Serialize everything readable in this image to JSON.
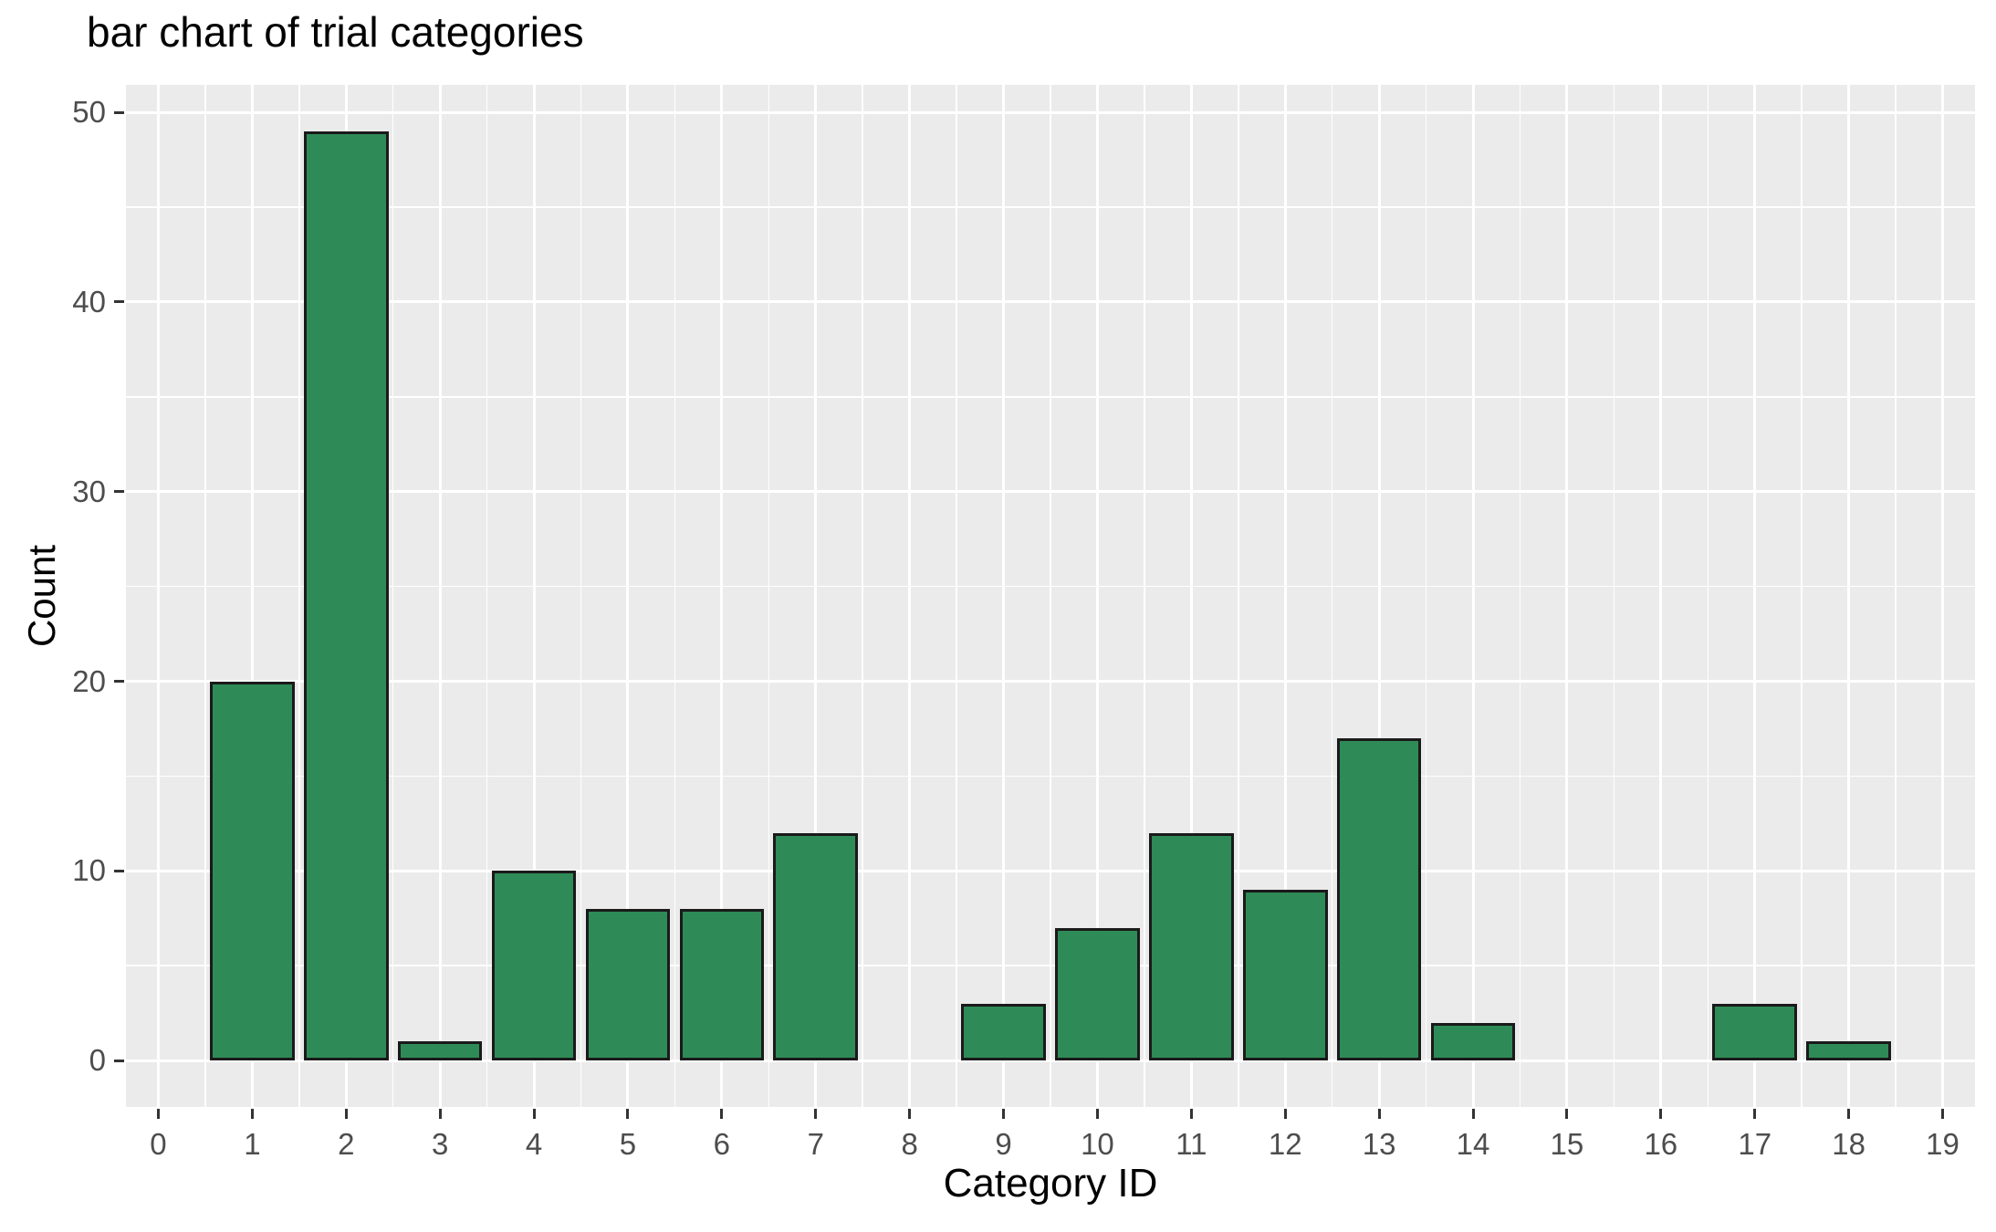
{
  "chart_data": {
    "type": "bar",
    "title": "bar chart of trial categories",
    "xlabel": "Category ID",
    "ylabel": "Count",
    "x": [
      0,
      1,
      2,
      3,
      4,
      5,
      6,
      7,
      8,
      9,
      10,
      11,
      12,
      13,
      14,
      15,
      16,
      17,
      18,
      19
    ],
    "values": [
      0,
      20,
      49,
      1,
      10,
      8,
      8,
      12,
      0,
      3,
      7,
      12,
      9,
      17,
      2,
      0,
      0,
      3,
      1,
      0
    ],
    "bar_width": 0.9,
    "xlim": [
      -0.345,
      19.345
    ],
    "ylim": [
      -2.45,
      51.45
    ],
    "x_ticks": [
      0,
      1,
      2,
      3,
      4,
      5,
      6,
      7,
      8,
      9,
      10,
      11,
      12,
      13,
      14,
      15,
      16,
      17,
      18,
      19
    ],
    "y_ticks": [
      0,
      10,
      20,
      30,
      40,
      50
    ],
    "x_minor": [
      0.5,
      1.5,
      2.5,
      3.5,
      4.5,
      5.5,
      6.5,
      7.5,
      8.5,
      9.5,
      10.5,
      11.5,
      12.5,
      13.5,
      14.5,
      15.5,
      16.5,
      17.5,
      18.5
    ],
    "y_minor": [
      5,
      15,
      25,
      35,
      45
    ],
    "grid": true,
    "legend": "none",
    "colors": {
      "bar_fill": "#2e8b57",
      "bar_stroke": "#1a1a1a",
      "panel_bg": "#ebebeb",
      "grid": "#ffffff",
      "tick_label": "#4d4d4d",
      "tick_mark": "#333333",
      "title": "#000000"
    }
  }
}
